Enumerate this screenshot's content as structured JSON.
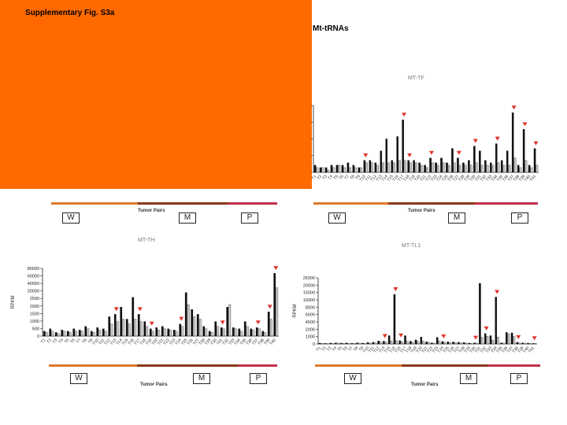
{
  "figure_label": "Supplementary Fig. S3a",
  "section_title": "Mt-tRNAs",
  "group_labels": [
    "W",
    "M",
    "P"
  ],
  "x_label": "Tumor Pairs",
  "colors": {
    "overlay": "#ff6a00",
    "marker": "#e0352b",
    "stripe_w": "#e07a2a",
    "stripe_m": "#8a3a18",
    "stripe_p": "#c0304a"
  },
  "chart_data": [
    {
      "type": "bar",
      "title": "MT-TF",
      "ylabel": "",
      "xlabel": "Tumor Pairs",
      "ytick_labels": [
        "",
        "",
        "",
        "",
        ""
      ],
      "categories": [
        "T1",
        "T2",
        "T3",
        "T4",
        "T5",
        "T6",
        "T7",
        "T8",
        "T9",
        "T10",
        "T11",
        "T12",
        "T13",
        "T14",
        "T15",
        "T16",
        "T17",
        "T18",
        "T19",
        "T20",
        "T21",
        "T22",
        "T23",
        "T24",
        "T25",
        "T26",
        "T27",
        "T28",
        "T29",
        "T30",
        "T31",
        "T32",
        "T33",
        "T34",
        "T35",
        "T36",
        "T37",
        "T38",
        "T39",
        "T40",
        "T41"
      ],
      "series": [
        {
          "values": [
            3,
            2,
            2,
            3,
            3,
            3,
            4,
            3,
            2,
            5,
            5,
            4,
            9,
            14,
            5,
            15,
            22,
            5,
            5,
            4,
            3,
            6,
            4,
            6,
            4,
            10,
            6,
            4,
            5,
            11,
            9,
            5,
            4,
            12,
            5,
            9,
            25,
            3,
            18,
            3,
            10
          ]
        },
        {
          "values": [
            2,
            2,
            1,
            2,
            3,
            2,
            2,
            2,
            2,
            4,
            4,
            3,
            4,
            4,
            4,
            5,
            5,
            4,
            4,
            3,
            2,
            4,
            3,
            4,
            3,
            4,
            3,
            3,
            3,
            4,
            3,
            3,
            3,
            4,
            3,
            3,
            6,
            2,
            5,
            2,
            3
          ]
        }
      ],
      "markers": [
        9,
        16,
        17,
        21,
        26,
        29,
        33,
        36,
        38,
        40
      ]
    },
    {
      "type": "bar",
      "title": "MT-TH",
      "ylabel": "RPKM",
      "xlabel": "Tumor Pairs",
      "ytick_labels": [
        "80000",
        "60000",
        "40000",
        "20000",
        "2500",
        "2000",
        "1500",
        "1000",
        "500",
        "0"
      ],
      "categories": [
        "T1",
        "T2",
        "T3",
        "T4",
        "T5",
        "T6",
        "T7",
        "T8",
        "T9",
        "T10",
        "T11",
        "T12",
        "T13",
        "T14",
        "T15",
        "T16",
        "T17",
        "T18",
        "T19",
        "T20",
        "T21",
        "T22",
        "T23",
        "T24",
        "T25",
        "T26",
        "T27",
        "T28",
        "T29",
        "T30",
        "T31",
        "T32",
        "T33",
        "T34",
        "T35",
        "T36",
        "T37",
        "T38",
        "T39",
        "T40"
      ],
      "series": [
        {
          "values": [
            200,
            300,
            150,
            250,
            200,
            300,
            250,
            400,
            200,
            350,
            300,
            800,
            900,
            1200,
            700,
            1600,
            900,
            600,
            300,
            350,
            400,
            300,
            250,
            500,
            1800,
            1100,
            900,
            400,
            200,
            600,
            350,
            1200,
            350,
            300,
            600,
            300,
            350,
            200,
            1000,
            2600
          ]
        },
        {
          "values": [
            150,
            200,
            100,
            200,
            150,
            200,
            200,
            300,
            150,
            250,
            200,
            500,
            600,
            700,
            500,
            700,
            600,
            400,
            200,
            250,
            300,
            250,
            200,
            400,
            1300,
            800,
            700,
            300,
            150,
            400,
            300,
            1300,
            300,
            200,
            400,
            250,
            300,
            150,
            700,
            2000
          ]
        }
      ],
      "markers": [
        12,
        16,
        18,
        23,
        30,
        36,
        38,
        39
      ]
    },
    {
      "type": "bar",
      "title": "MT-TL1",
      "ylabel": "RPKM",
      "xlabel": "Tumor Pairs",
      "ytick_labels": [
        "25000",
        "20000",
        "15000",
        "10000",
        "8000",
        "6000",
        "4000",
        "2000",
        "1000",
        "0"
      ],
      "categories": [
        "T1",
        "T2",
        "T3",
        "T4",
        "T5",
        "T6",
        "T7",
        "T8",
        "T9",
        "T10",
        "T11",
        "T12",
        "T13",
        "T14",
        "T15",
        "T16",
        "T17",
        "T18",
        "T19",
        "T20",
        "T21",
        "T22",
        "T23",
        "T24",
        "T25",
        "T26",
        "T27",
        "T28",
        "T29",
        "T30",
        "T31",
        "T32",
        "T33",
        "T34",
        "T35",
        "T36",
        "T37",
        "T38",
        "T39",
        "T40",
        "T41"
      ],
      "series": [
        {
          "values": [
            300,
            200,
            300,
            400,
            300,
            350,
            250,
            400,
            300,
            500,
            600,
            1100,
            1000,
            3000,
            18000,
            1200,
            3000,
            1000,
            1500,
            2500,
            800,
            400,
            2400,
            900,
            800,
            700,
            600,
            500,
            300,
            400,
            22000,
            3800,
            3000,
            17000,
            400,
            4200,
            4000,
            600,
            400,
            300,
            200
          ]
        },
        {
          "values": [
            200,
            150,
            200,
            300,
            200,
            250,
            200,
            300,
            200,
            300,
            400,
            700,
            700,
            1100,
            1200,
            800,
            1000,
            700,
            900,
            1000,
            500,
            300,
            1100,
            600,
            500,
            500,
            400,
            300,
            200,
            300,
            2400,
            2800,
            1400,
            2500,
            300,
            3600,
            2700,
            400,
            300,
            200,
            150
          ]
        }
      ],
      "markers": [
        12,
        14,
        15,
        23,
        29,
        31,
        33,
        37,
        40
      ]
    }
  ]
}
